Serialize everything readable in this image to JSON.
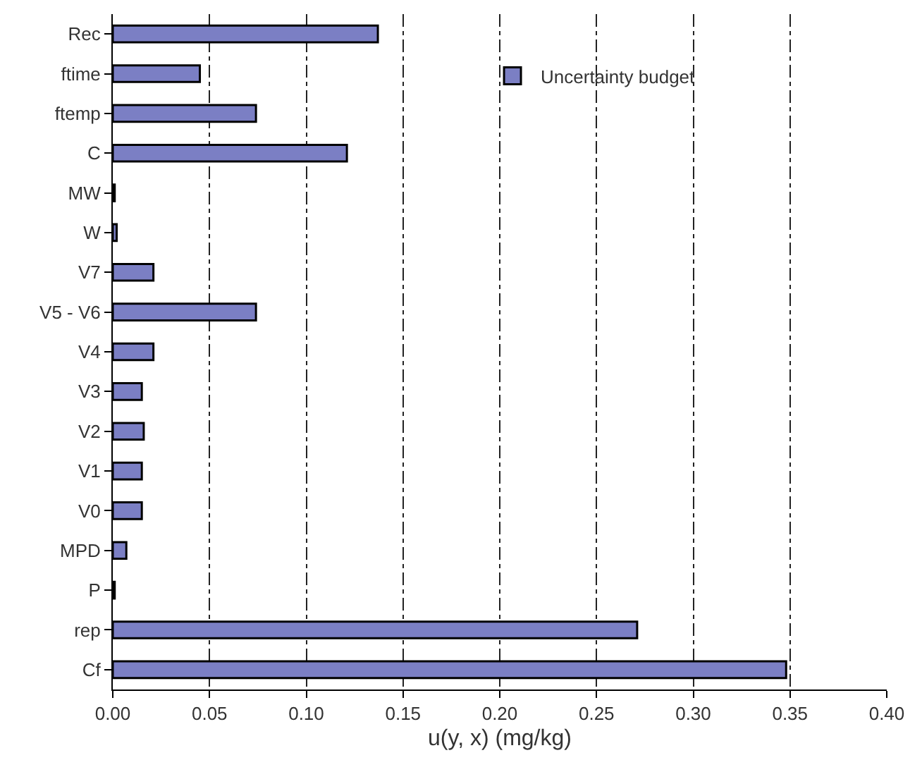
{
  "chart_data": {
    "type": "bar",
    "orientation": "horizontal",
    "xlabel": "u(y, x) (mg/kg)",
    "categories": [
      "Rec",
      "ftime",
      "ftemp",
      "C",
      "MW",
      "W",
      "V7",
      "V5 - V6",
      "V4",
      "V3",
      "V2",
      "V1",
      "V0",
      "MPD",
      "P",
      "rep",
      "Cf"
    ],
    "series": [
      {
        "name": "Uncertainty budget",
        "color": "#7b7fc4",
        "values": [
          0.137,
          0.045,
          0.074,
          0.121,
          0.001,
          0.002,
          0.021,
          0.074,
          0.021,
          0.015,
          0.016,
          0.015,
          0.015,
          0.007,
          0.001,
          0.271,
          0.348
        ]
      }
    ],
    "xlim": [
      0,
      0.4
    ],
    "xticks": [
      {
        "value": 0,
        "label": "0.00"
      },
      {
        "value": 0.05,
        "label": "0.05"
      },
      {
        "value": 0.1,
        "label": "0.10"
      },
      {
        "value": 0.15,
        "label": "0.15"
      },
      {
        "value": 0.2,
        "label": "0.20"
      },
      {
        "value": 0.25,
        "label": "0.25"
      },
      {
        "value": 0.3,
        "label": "0.30"
      },
      {
        "value": 0.35,
        "label": "0.35"
      },
      {
        "value": 0.4,
        "label": "0.40"
      }
    ],
    "grid": "x",
    "legend": "top right"
  }
}
